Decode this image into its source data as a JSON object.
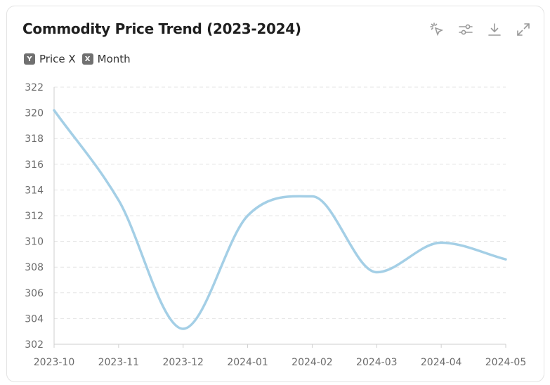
{
  "header": {
    "title": "Commodity Price Trend (2023-2024)",
    "tools": [
      {
        "name": "select-icon"
      },
      {
        "name": "sliders-icon"
      },
      {
        "name": "download-icon"
      },
      {
        "name": "expand-icon"
      }
    ]
  },
  "legend": {
    "y_badge": "Y",
    "y_label": "Price X",
    "x_badge": "X",
    "x_label": "Month"
  },
  "colors": {
    "line": "#a4cfe6",
    "grid": "#e4e4e4",
    "axis": "#cfcfcf",
    "tick_text": "#6b6b6b"
  },
  "chart_data": {
    "type": "line",
    "title": "Commodity Price Trend (2023-2024)",
    "xlabel": "Month",
    "ylabel": "Price X",
    "categories": [
      "2023-10",
      "2023-11",
      "2023-12",
      "2024-01",
      "2024-02",
      "2024-03",
      "2024-04",
      "2024-05"
    ],
    "series": [
      {
        "name": "Price X",
        "values": [
          320.2,
          313.2,
          303.2,
          312.0,
          313.5,
          307.6,
          309.9,
          308.6
        ]
      }
    ],
    "ylim": [
      302,
      322
    ],
    "yticks": [
      302,
      304,
      306,
      308,
      310,
      312,
      314,
      316,
      318,
      320,
      322
    ],
    "grid": true,
    "smooth": true,
    "legend_placement": "top-left"
  }
}
